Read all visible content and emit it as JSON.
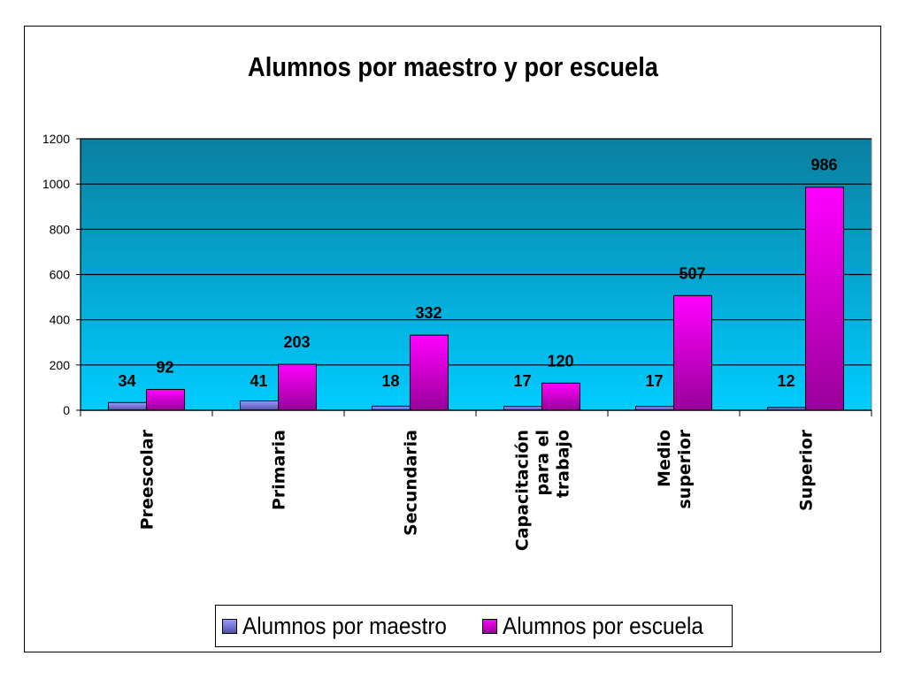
{
  "chart_data": {
    "type": "bar",
    "title": "Alumnos por maestro y por escuela",
    "categories": [
      "Preescolar",
      "Primaria",
      "Secundaria",
      "Capacitación para el trabajo",
      "Medio superior",
      "Superior"
    ],
    "category_lines": [
      [
        "Preescolar"
      ],
      [
        "Primaria"
      ],
      [
        "Secundaria"
      ],
      [
        "Capacitación",
        "para el",
        "trabajo"
      ],
      [
        "Medio",
        "superior"
      ],
      [
        "Superior"
      ]
    ],
    "series": [
      {
        "name": "Alumnos por maestro",
        "values": [
          34,
          41,
          18,
          17,
          17,
          12
        ],
        "color": "#9999ff",
        "color_dark": "#5252a8"
      },
      {
        "name": "Alumnos por escuela",
        "values": [
          92,
          203,
          332,
          120,
          507,
          986
        ],
        "color": "#ff00ff",
        "color_dark": "#990099"
      }
    ],
    "ylim": [
      0,
      1200
    ],
    "yticks": [
      0,
      200,
      400,
      600,
      800,
      1000,
      1200
    ],
    "xlabel": "",
    "ylabel": "",
    "grid": true,
    "legend_position": "bottom",
    "plot_background": {
      "top": "#0a7f9f",
      "bottom": "#00ccff"
    },
    "data_labels": true
  }
}
